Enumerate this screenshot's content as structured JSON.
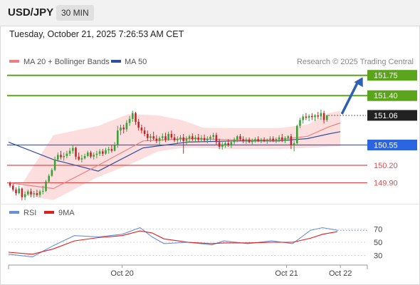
{
  "header": {
    "symbol": "USD/JPY",
    "timeframe": "30 MIN"
  },
  "timestamp": "Tuesday, October 21, 2025 7:26:53 AM CET",
  "legend": {
    "ma20": "MA 20 + Bollinger Bands",
    "ma50": "MA 50",
    "rsi": "RSI",
    "rsi_ma": "9MA"
  },
  "credit": "Research © 2025 Trading Central",
  "colors": {
    "resistance": "#5aa51b",
    "support": "#2b66e0",
    "weak_support": "#e24b4b",
    "ma20": "#f08080",
    "ma50": "#2e4f9e",
    "bands": "#fcd6d6",
    "up": "#3aa23a",
    "down": "#c0282d",
    "rsi": "#6a8fd8",
    "rsi_ma": "#e01e1e",
    "arrow": "#2f5fb0",
    "price_box": "#222222"
  },
  "chart_data": [
    {
      "type": "candlestick",
      "symbol": "USD/JPY",
      "interval": "30 MIN",
      "xlim_index": [
        0,
        120
      ],
      "ylim": [
        149.55,
        151.82
      ],
      "x_ticks": [
        {
          "i": 38,
          "label": "Oct 20"
        },
        {
          "i": 93,
          "label": "Oct 21"
        },
        {
          "i": 111,
          "label": "Oct 22"
        }
      ],
      "candles": [
        [
          149.9,
          149.92,
          149.82,
          149.85
        ],
        [
          149.85,
          149.88,
          149.75,
          149.78
        ],
        [
          149.78,
          149.82,
          149.68,
          149.72
        ],
        [
          149.72,
          149.85,
          149.7,
          149.8
        ],
        [
          149.8,
          149.82,
          149.6,
          149.65
        ],
        [
          149.65,
          149.75,
          149.6,
          149.7
        ],
        [
          149.7,
          149.78,
          149.68,
          149.75
        ],
        [
          149.75,
          149.8,
          149.65,
          149.7
        ],
        [
          149.7,
          149.76,
          149.64,
          149.72
        ],
        [
          149.72,
          149.78,
          149.66,
          149.69
        ],
        [
          149.69,
          149.78,
          149.65,
          149.75
        ],
        [
          149.75,
          149.85,
          149.7,
          149.76
        ],
        [
          149.76,
          149.95,
          149.74,
          149.92
        ],
        [
          149.92,
          150.05,
          149.9,
          150.02
        ],
        [
          150.02,
          150.15,
          150.0,
          150.12
        ],
        [
          150.12,
          150.35,
          150.1,
          150.3
        ],
        [
          150.3,
          150.42,
          150.26,
          150.38
        ],
        [
          150.38,
          150.45,
          150.3,
          150.34
        ],
        [
          150.34,
          150.42,
          150.28,
          150.36
        ],
        [
          150.36,
          150.45,
          150.32,
          150.4
        ],
        [
          150.4,
          150.5,
          150.36,
          150.45
        ],
        [
          150.45,
          150.55,
          150.4,
          150.5
        ],
        [
          150.5,
          150.52,
          150.3,
          150.35
        ],
        [
          150.35,
          150.42,
          150.28,
          150.3
        ],
        [
          150.3,
          150.38,
          150.25,
          150.32
        ],
        [
          150.32,
          150.4,
          150.3,
          150.36
        ],
        [
          150.36,
          150.45,
          150.34,
          150.42
        ],
        [
          150.42,
          150.45,
          150.32,
          150.35
        ],
        [
          150.35,
          150.42,
          150.3,
          150.38
        ],
        [
          150.38,
          150.45,
          150.32,
          150.4
        ],
        [
          150.4,
          150.48,
          150.36,
          150.44
        ],
        [
          150.44,
          150.48,
          150.36,
          150.4
        ],
        [
          150.4,
          150.5,
          150.38,
          150.46
        ],
        [
          150.46,
          150.52,
          150.4,
          150.48
        ],
        [
          150.48,
          150.55,
          150.42,
          150.45
        ],
        [
          150.45,
          150.6,
          150.44,
          150.55
        ],
        [
          150.55,
          150.88,
          150.5,
          150.8
        ],
        [
          150.8,
          150.9,
          150.72,
          150.85
        ],
        [
          150.85,
          150.9,
          150.75,
          150.82
        ],
        [
          150.82,
          150.98,
          150.78,
          150.93
        ],
        [
          150.93,
          151.05,
          150.88,
          151.0
        ],
        [
          151.0,
          151.14,
          150.95,
          151.1
        ],
        [
          151.1,
          151.12,
          150.9,
          150.95
        ],
        [
          150.95,
          151.0,
          150.8,
          150.85
        ],
        [
          150.85,
          150.9,
          150.75,
          150.8
        ],
        [
          150.8,
          150.86,
          150.7,
          150.74
        ],
        [
          150.74,
          150.8,
          150.62,
          150.67
        ],
        [
          150.67,
          150.74,
          150.6,
          150.7
        ],
        [
          150.7,
          150.78,
          150.63,
          150.66
        ],
        [
          150.66,
          150.72,
          150.58,
          150.62
        ],
        [
          150.62,
          150.7,
          150.55,
          150.67
        ],
        [
          150.67,
          150.75,
          150.62,
          150.7
        ],
        [
          150.7,
          150.76,
          150.6,
          150.64
        ],
        [
          150.64,
          150.78,
          150.62,
          150.74
        ],
        [
          150.74,
          150.8,
          150.65,
          150.68
        ],
        [
          150.68,
          150.74,
          150.6,
          150.63
        ],
        [
          150.63,
          150.7,
          150.58,
          150.65
        ],
        [
          150.65,
          150.72,
          150.6,
          150.68
        ],
        [
          150.68,
          150.74,
          150.4,
          150.62
        ],
        [
          150.62,
          150.7,
          150.55,
          150.66
        ],
        [
          150.66,
          150.73,
          150.6,
          150.7
        ],
        [
          150.7,
          150.75,
          150.62,
          150.65
        ],
        [
          150.65,
          150.72,
          150.6,
          150.68
        ],
        [
          150.68,
          150.74,
          150.6,
          150.64
        ],
        [
          150.64,
          150.72,
          150.6,
          150.67
        ],
        [
          150.67,
          150.73,
          150.6,
          150.63
        ],
        [
          150.63,
          150.7,
          150.58,
          150.66
        ],
        [
          150.66,
          150.72,
          150.62,
          150.69
        ],
        [
          150.69,
          150.76,
          150.64,
          150.72
        ],
        [
          150.72,
          150.76,
          150.55,
          150.6
        ],
        [
          150.6,
          150.66,
          150.48,
          150.52
        ],
        [
          150.52,
          150.6,
          150.47,
          150.55
        ],
        [
          150.55,
          150.62,
          150.5,
          150.58
        ],
        [
          150.58,
          150.65,
          150.52,
          150.55
        ],
        [
          150.55,
          150.62,
          150.5,
          150.6
        ],
        [
          150.6,
          150.68,
          150.56,
          150.64
        ],
        [
          150.64,
          150.72,
          150.6,
          150.7
        ],
        [
          150.7,
          150.74,
          150.62,
          150.65
        ],
        [
          150.65,
          150.7,
          150.58,
          150.62
        ],
        [
          150.62,
          150.68,
          150.57,
          150.64
        ],
        [
          150.64,
          150.68,
          150.58,
          150.6
        ],
        [
          150.6,
          150.66,
          150.56,
          150.63
        ],
        [
          150.63,
          150.68,
          150.59,
          150.65
        ],
        [
          150.65,
          150.7,
          150.6,
          150.62
        ],
        [
          150.62,
          150.67,
          150.58,
          150.64
        ],
        [
          150.64,
          150.68,
          150.6,
          150.62
        ],
        [
          150.62,
          150.66,
          150.57,
          150.64
        ],
        [
          150.64,
          150.7,
          150.6,
          150.66
        ],
        [
          150.66,
          150.7,
          150.6,
          150.63
        ],
        [
          150.63,
          150.68,
          150.58,
          150.65
        ],
        [
          150.65,
          150.72,
          150.6,
          150.68
        ],
        [
          150.68,
          150.74,
          150.6,
          150.64
        ],
        [
          150.64,
          150.7,
          150.58,
          150.67
        ],
        [
          150.67,
          150.72,
          150.62,
          150.7
        ],
        [
          150.7,
          150.74,
          150.48,
          150.55
        ],
        [
          150.55,
          150.62,
          150.44,
          150.58
        ],
        [
          150.58,
          150.9,
          150.56,
          150.88
        ],
        [
          150.88,
          151.02,
          150.84,
          150.98
        ],
        [
          150.98,
          151.08,
          150.92,
          151.04
        ],
        [
          151.04,
          151.1,
          150.98,
          151.02
        ],
        [
          151.02,
          151.08,
          150.96,
          151.05
        ],
        [
          151.05,
          151.1,
          150.98,
          151.03
        ],
        [
          151.03,
          151.08,
          150.96,
          151.06
        ],
        [
          151.06,
          151.12,
          151.0,
          151.04
        ],
        [
          151.04,
          151.16,
          150.98,
          151.1
        ],
        [
          151.1,
          151.14,
          150.92,
          150.98
        ],
        [
          150.98,
          151.07,
          150.95,
          151.06
        ]
      ],
      "current_price": "151.06",
      "levels": [
        {
          "value": 151.75,
          "label": "151.75",
          "kind": "resistance"
        },
        {
          "value": 151.4,
          "label": "151.40",
          "kind": "resistance"
        },
        {
          "value": 150.55,
          "label": "150.55",
          "kind": "support"
        },
        {
          "value": 150.2,
          "label": "150.20",
          "kind": "weak_support"
        },
        {
          "value": 149.9,
          "label": "149.90",
          "kind": "weak_support"
        }
      ],
      "projection": {
        "from": [
          111,
          151.06
        ],
        "to": [
          118,
          151.73
        ]
      },
      "series_lines": {
        "ma20": [
          [
            0,
            149.9
          ],
          [
            15,
            149.8
          ],
          [
            30,
            150.2
          ],
          [
            45,
            150.62
          ],
          [
            60,
            150.66
          ],
          [
            75,
            150.64
          ],
          [
            90,
            150.64
          ],
          [
            100,
            150.7
          ],
          [
            107,
            150.86
          ],
          [
            111,
            150.93
          ]
        ],
        "ma50": [
          [
            0,
            150.6
          ],
          [
            15,
            150.3
          ],
          [
            30,
            150.1
          ],
          [
            45,
            150.5
          ],
          [
            60,
            150.6
          ],
          [
            75,
            150.62
          ],
          [
            90,
            150.62
          ],
          [
            100,
            150.66
          ],
          [
            107,
            150.74
          ],
          [
            111,
            150.78
          ]
        ],
        "band_upper": [
          [
            5,
            149.92
          ],
          [
            15,
            150.72
          ],
          [
            30,
            150.88
          ],
          [
            40,
            151.08
          ],
          [
            50,
            151.06
          ],
          [
            58,
            150.98
          ],
          [
            65,
            150.85
          ],
          [
            75,
            150.84
          ],
          [
            90,
            150.84
          ],
          [
            100,
            150.9
          ],
          [
            107,
            151.1
          ],
          [
            111,
            151.14
          ]
        ],
        "band_lower": [
          [
            5,
            149.68
          ],
          [
            15,
            149.6
          ],
          [
            30,
            150.0
          ],
          [
            40,
            150.2
          ],
          [
            50,
            150.44
          ],
          [
            58,
            150.5
          ],
          [
            65,
            150.5
          ],
          [
            75,
            150.48
          ],
          [
            90,
            150.48
          ],
          [
            100,
            150.5
          ],
          [
            107,
            150.52
          ],
          [
            111,
            150.53
          ]
        ]
      }
    },
    {
      "type": "line",
      "title": "RSI",
      "ylim": [
        20,
        80
      ],
      "y_ticks": [
        70,
        50,
        30
      ],
      "series": [
        {
          "name": "RSI",
          "points": [
            [
              0,
              32
            ],
            [
              8,
              28
            ],
            [
              15,
              45
            ],
            [
              22,
              60
            ],
            [
              30,
              58
            ],
            [
              38,
              62
            ],
            [
              44,
              72
            ],
            [
              48,
              58
            ],
            [
              52,
              48
            ],
            [
              60,
              50
            ],
            [
              68,
              46
            ],
            [
              72,
              52
            ],
            [
              80,
              48
            ],
            [
              88,
              52
            ],
            [
              95,
              48
            ],
            [
              101,
              68
            ],
            [
              105,
              72
            ],
            [
              110,
              68
            ]
          ]
        },
        {
          "name": "9MA",
          "points": [
            [
              0,
              35
            ],
            [
              8,
              32
            ],
            [
              15,
              40
            ],
            [
              22,
              52
            ],
            [
              30,
              57
            ],
            [
              38,
              60
            ],
            [
              44,
              67
            ],
            [
              48,
              64
            ],
            [
              52,
              55
            ],
            [
              60,
              50
            ],
            [
              68,
              48
            ],
            [
              72,
              49
            ],
            [
              80,
              49
            ],
            [
              88,
              50
            ],
            [
              95,
              50
            ],
            [
              101,
              56
            ],
            [
              105,
              62
            ],
            [
              110,
              66
            ]
          ]
        }
      ]
    }
  ]
}
